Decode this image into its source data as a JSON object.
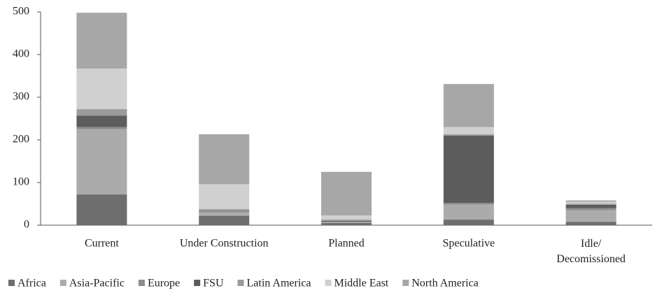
{
  "chart_data": {
    "type": "stacked_bar",
    "categories": [
      "Current",
      "Under Construction",
      "Planned",
      "Speculative",
      "Idle/ Decomissioned"
    ],
    "series": [
      {
        "name": "Africa",
        "color": "#6e6e6e",
        "values": [
          72,
          22,
          5,
          13,
          8
        ]
      },
      {
        "name": "Asia-Pacific",
        "color": "#ababab",
        "values": [
          153,
          8,
          2,
          35,
          27
        ]
      },
      {
        "name": "Europe",
        "color": "#8d8d8d",
        "values": [
          5,
          5,
          1,
          4,
          5
        ]
      },
      {
        "name": "FSU",
        "color": "#5c5c5c",
        "values": [
          27,
          0,
          2,
          158,
          8
        ]
      },
      {
        "name": "Latin America",
        "color": "#9b9b9b",
        "values": [
          15,
          3,
          3,
          3,
          2
        ]
      },
      {
        "name": "Middle East",
        "color": "#d0d0d0",
        "values": [
          95,
          58,
          10,
          17,
          5
        ]
      },
      {
        "name": "North America",
        "color": "#a7a7a7",
        "values": [
          131,
          117,
          102,
          101,
          3
        ]
      }
    ],
    "ylim": [
      0,
      500
    ],
    "yticks": [
      0,
      100,
      200,
      300,
      400,
      500
    ],
    "grid": false,
    "legend": "bottom"
  }
}
